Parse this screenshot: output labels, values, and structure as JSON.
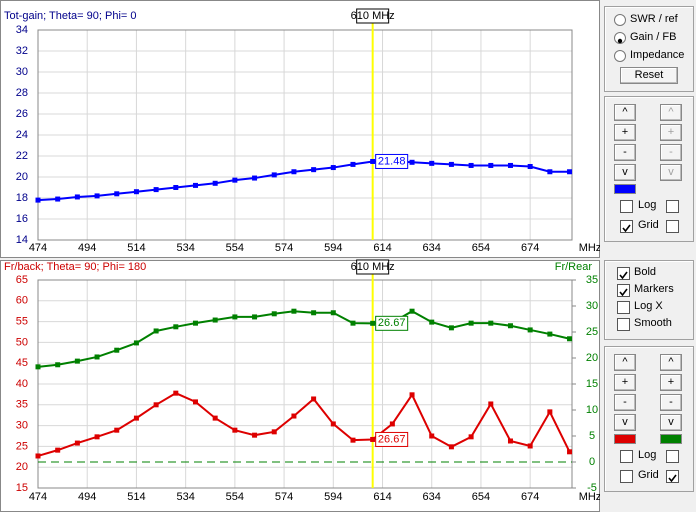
{
  "chart_data": [
    {
      "type": "line",
      "title": "Tot-gain; Theta= 90; Phi= 0",
      "title_color": "#00008b",
      "x_label": "MHz",
      "x": [
        474,
        482,
        490,
        498,
        506,
        514,
        522,
        530,
        538,
        546,
        554,
        562,
        570,
        578,
        586,
        594,
        602,
        610,
        618,
        626,
        634,
        642,
        650,
        658,
        666,
        674,
        682,
        690
      ],
      "xlim": [
        474,
        691
      ],
      "xticks": [
        474,
        494,
        514,
        534,
        554,
        574,
        594,
        614,
        634,
        654,
        674
      ],
      "ylim": [
        14,
        34
      ],
      "yticks": [
        14,
        16,
        18,
        20,
        22,
        24,
        26,
        28,
        30,
        32,
        34
      ],
      "ytick_color": "#00008b",
      "grid": true,
      "series": [
        {
          "color": "#0000ff",
          "values": [
            17.8,
            17.9,
            18.1,
            18.2,
            18.4,
            18.6,
            18.8,
            19.0,
            19.2,
            19.4,
            19.7,
            19.9,
            20.2,
            20.5,
            20.7,
            20.9,
            21.2,
            21.48,
            21.5,
            21.4,
            21.3,
            21.2,
            21.1,
            21.1,
            21.1,
            21.0,
            20.5,
            20.5
          ]
        }
      ],
      "marker": {
        "label": "610 MHz",
        "x": 610
      }
    },
    {
      "type": "line",
      "title": "Fr/back; Theta= 90; Phi= 180",
      "title_color": "#cc0000",
      "x_label": "MHz",
      "y2_label": "Fr/Rear",
      "y2_label_color": "#008000",
      "x": [
        474,
        482,
        490,
        498,
        506,
        514,
        522,
        530,
        538,
        546,
        554,
        562,
        570,
        578,
        586,
        594,
        602,
        610,
        618,
        626,
        634,
        642,
        650,
        658,
        666,
        674,
        682,
        690
      ],
      "xlim": [
        474,
        691
      ],
      "xticks": [
        474,
        494,
        514,
        534,
        554,
        574,
        594,
        614,
        634,
        654,
        674
      ],
      "ylim": [
        15,
        65
      ],
      "yticks": [
        15,
        20,
        25,
        30,
        35,
        40,
        45,
        50,
        55,
        60,
        65
      ],
      "ytick_color": "#cc0000",
      "y2lim": [
        -5,
        35
      ],
      "y2ticks": [
        -5,
        0,
        5,
        10,
        15,
        20,
        25,
        30,
        35
      ],
      "y2tick_color": "#008000",
      "grid": true,
      "reference_line": {
        "axis": "y2",
        "value": 0,
        "color": "#008000"
      },
      "series": [
        {
          "color": "#dd0000",
          "values": [
            22.7,
            24.1,
            25.8,
            27.3,
            28.9,
            31.8,
            35.0,
            37.8,
            35.7,
            31.8,
            28.9,
            27.7,
            28.5,
            32.3,
            36.4,
            30.4,
            26.5,
            26.67,
            30.4,
            37.4,
            27.5,
            24.9,
            27.3,
            35.2,
            26.3,
            25.1,
            33.3,
            23.7
          ]
        },
        {
          "color": "#008000",
          "axis": "y2",
          "values": [
            18.3,
            18.7,
            19.4,
            20.2,
            21.5,
            22.9,
            25.2,
            26.0,
            26.7,
            27.3,
            27.9,
            27.9,
            28.5,
            29.0,
            28.7,
            28.7,
            26.7,
            26.67,
            26.8,
            29.0,
            26.9,
            25.8,
            26.7,
            26.7,
            26.2,
            25.4,
            24.6,
            23.7
          ]
        }
      ],
      "marker": {
        "label": "610 MHz",
        "x": 610
      }
    }
  ],
  "controls": {
    "mode": {
      "options": [
        "SWR / ref",
        "Gain / FB",
        "Impedance"
      ],
      "selected": 1
    },
    "reset": "Reset",
    "top_axis": {
      "buttons": [
        "^",
        "+",
        "-",
        "v"
      ],
      "right_enabled": false,
      "log": "Log",
      "grid": "Grid",
      "log_checked": [
        false,
        false
      ],
      "grid_checked": [
        true,
        false
      ]
    },
    "options": [
      {
        "label": "Bold",
        "checked": true
      },
      {
        "label": "Markers",
        "checked": true
      },
      {
        "label": "Log X",
        "checked": false
      },
      {
        "label": "Smooth",
        "checked": false
      }
    ],
    "bottom_axis": {
      "buttons": [
        "^",
        "+",
        "-",
        "v"
      ],
      "right_enabled": true,
      "log": "Log",
      "grid": "Grid",
      "log_checked": [
        false,
        false
      ],
      "grid_checked": [
        false,
        true
      ]
    }
  }
}
